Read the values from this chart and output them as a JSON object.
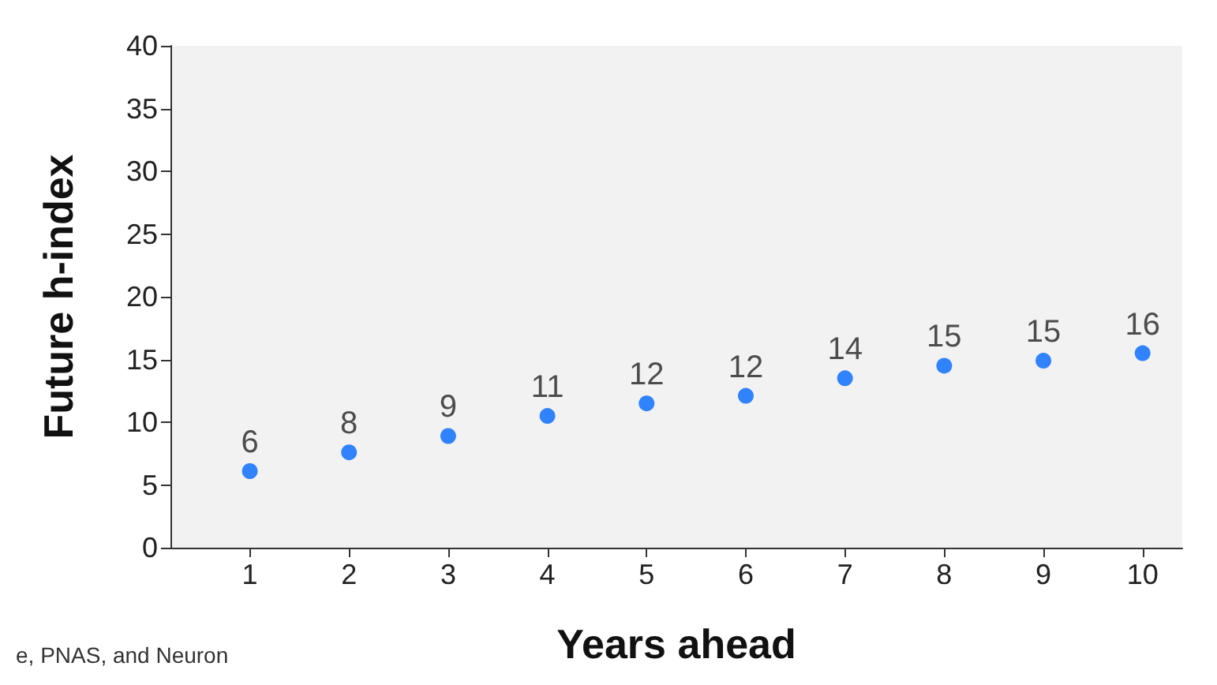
{
  "chart_data": {
    "type": "scatter",
    "xlabel": "Years ahead",
    "ylabel": "Future h-index",
    "x": [
      1,
      2,
      3,
      4,
      5,
      6,
      7,
      8,
      9,
      10
    ],
    "values": [
      6.1,
      7.6,
      8.9,
      10.5,
      11.5,
      12.1,
      13.5,
      14.5,
      14.9,
      15.5
    ],
    "value_labels": [
      "6",
      "8",
      "9",
      "11",
      "12",
      "12",
      "14",
      "15",
      "15",
      "16"
    ],
    "color": "#0066ff",
    "marker": "circle",
    "grid": false,
    "xlim": [
      0.2,
      10.4
    ],
    "xticks": [
      1,
      2,
      3,
      4,
      5,
      6,
      7,
      8,
      9,
      10
    ],
    "ylim": [
      0,
      40
    ],
    "yticks": [
      0,
      5,
      10,
      15,
      20,
      25,
      30,
      35,
      40
    ],
    "annotations": [
      "e, PNAS, and Neuron"
    ]
  }
}
